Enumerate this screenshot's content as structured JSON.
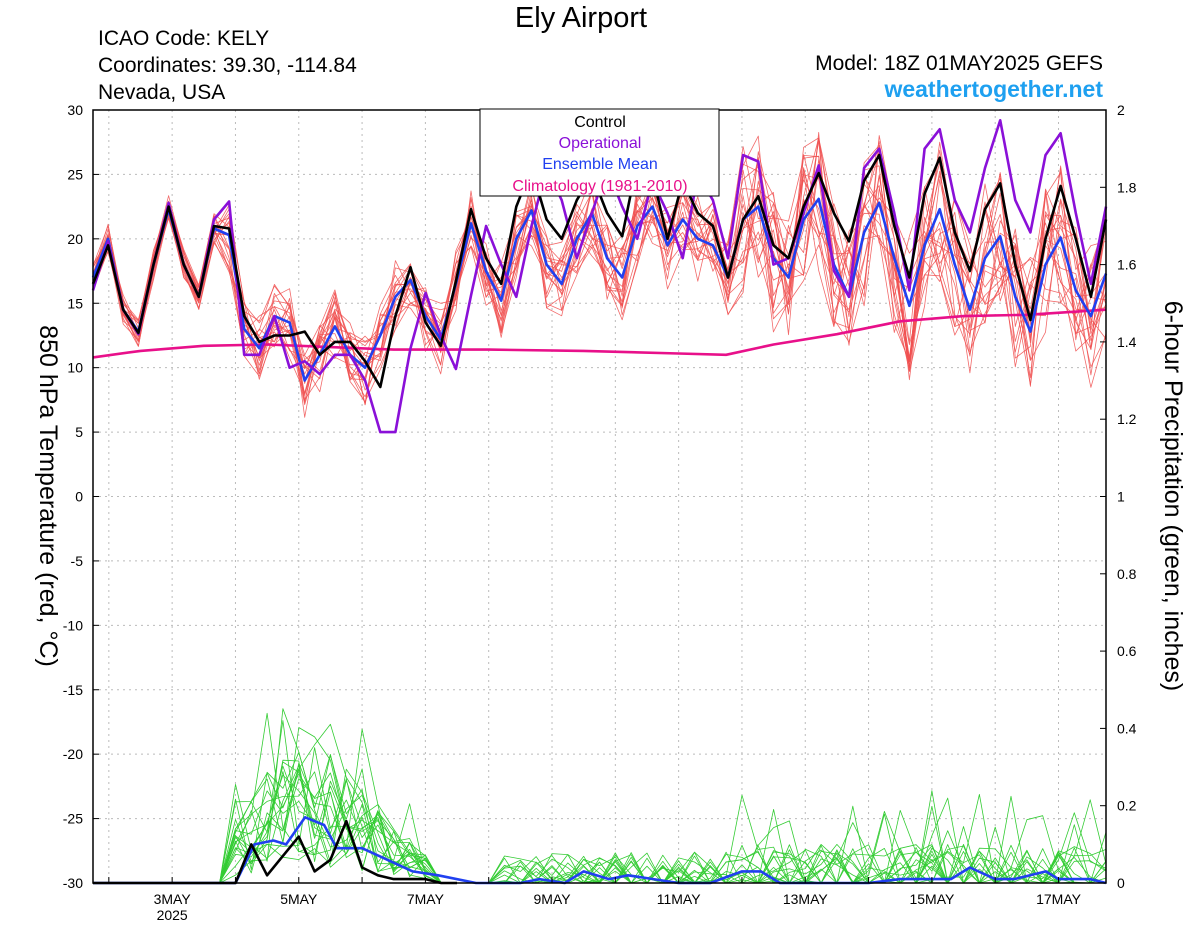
{
  "header": {
    "title": "Ely Airport",
    "icao": "ICAO Code: KELY",
    "coordinates": "Coordinates: 39.30, -114.84",
    "region": "Nevada, USA",
    "model": "Model: 18Z 01MAY2025 GEFS",
    "site": "weathertogether.net"
  },
  "chart_data": {
    "type": "line",
    "title": "Ely Airport",
    "ylabel_left": "850 hPa Temperature (red, °C)",
    "ylabel_right": "6-hour Precipitation (green, inches)",
    "ylim_left": [
      -30,
      30
    ],
    "ylim_right": [
      0,
      2
    ],
    "yticks_left": [
      "30",
      "25",
      "20",
      "15",
      "10",
      "5",
      "0",
      "-5",
      "-10",
      "-15",
      "-20",
      "-25",
      "-30"
    ],
    "yticks_right": [
      "2",
      "1.8",
      "1.6",
      "1.4",
      "1.2",
      "1",
      "0.8",
      "0.6",
      "0.4",
      "0.2",
      "0"
    ],
    "x_range_days": [
      1.75,
      17.75
    ],
    "xticks": [
      {
        "day": 3,
        "label": "3MAY",
        "sub": "2025"
      },
      {
        "day": 5,
        "label": "5MAY",
        "sub": ""
      },
      {
        "day": 7,
        "label": "7MAY",
        "sub": ""
      },
      {
        "day": 9,
        "label": "9MAY",
        "sub": ""
      },
      {
        "day": 11,
        "label": "11MAY",
        "sub": ""
      },
      {
        "day": 13,
        "label": "13MAY",
        "sub": ""
      },
      {
        "day": 15,
        "label": "15MAY",
        "sub": ""
      },
      {
        "day": 17,
        "label": "17MAY",
        "sub": ""
      }
    ],
    "grid": true,
    "legend_position": "top-center",
    "legend": [
      {
        "label": "Control",
        "color": "#000000"
      },
      {
        "label": "Operational",
        "color": "#8a10d8"
      },
      {
        "label": "Ensemble Mean",
        "color": "#2040f0"
      },
      {
        "label": "Climatology (1981-2010)",
        "color": "#e8108a"
      }
    ],
    "temperature_series": {
      "control": {
        "name": "Control",
        "color": "#000000",
        "values": [
          16.5,
          19.5,
          14.5,
          12.7,
          18,
          22.5,
          18,
          15.5,
          21,
          20.8,
          14,
          12,
          12.5,
          12.5,
          12.8,
          11,
          12,
          12,
          10.5,
          8.5,
          14,
          17.8,
          13.5,
          11.7,
          16.7,
          22.3,
          18.5,
          16.5,
          22.5,
          25.5,
          21.5,
          20,
          23,
          25,
          22,
          20.2,
          26,
          25,
          20,
          24.5,
          22,
          21,
          17,
          21.5,
          23.3,
          19.5,
          18.5,
          22.5,
          25.1,
          22,
          19.8,
          24.5,
          26.5,
          21,
          17,
          23.5,
          26.3,
          20.5,
          17.5,
          22.3,
          24.3,
          18,
          13.7,
          20,
          24.1,
          20,
          15.5,
          21.5
        ]
      },
      "operational": {
        "name": "Operational",
        "color": "#8a10d8",
        "values": [
          16,
          19.8,
          14.5,
          12.6,
          18,
          22.8,
          18,
          15.5,
          21.5,
          22.9,
          11,
          11,
          14,
          10,
          10.5,
          9.5,
          11,
          11,
          9,
          5,
          5,
          11.5,
          15.8,
          12.5,
          9.9,
          15.6,
          21,
          18,
          15.5,
          21,
          25.5,
          23,
          18.5,
          22,
          25.5,
          22.5,
          20,
          24.5,
          22,
          18.5,
          25,
          23,
          18.5,
          26.5,
          26,
          18,
          18.5,
          22,
          25.7,
          17.5,
          15.5,
          25.5,
          27,
          22,
          16,
          27,
          28.5,
          23,
          20.5,
          25.5,
          29.2,
          23,
          20.5,
          26.5,
          28.2,
          22,
          16.5,
          22.5
        ]
      },
      "mean": {
        "name": "Ensemble Mean",
        "color": "#2040f0",
        "values": [
          17,
          20,
          14.5,
          12.8,
          18,
          22.3,
          18,
          15.5,
          20.8,
          20.3,
          13,
          11.5,
          14,
          13.5,
          9,
          11,
          13.2,
          11,
          10,
          12.5,
          15.5,
          16.8,
          14,
          12.2,
          16.5,
          21.2,
          17.5,
          15.2,
          20,
          22.2,
          18,
          16.5,
          20,
          22,
          18.5,
          17,
          21,
          22.5,
          19.5,
          21.5,
          20,
          19.5,
          17,
          21.5,
          22.5,
          18.5,
          17,
          21.5,
          23.1,
          18,
          15.5,
          20.5,
          22.8,
          18.5,
          14.8,
          19.5,
          22.3,
          18,
          14.5,
          18.5,
          20.2,
          15.5,
          12.8,
          18,
          20.1,
          16,
          14,
          17.3
        ]
      },
      "climatology": {
        "name": "Climatology (1981-2010)",
        "color": "#e8108a",
        "points": [
          [
            1.75,
            10.8
          ],
          [
            2.5,
            11.3
          ],
          [
            3.5,
            11.7
          ],
          [
            4.5,
            11.8
          ],
          [
            5.5,
            11.6
          ],
          [
            6.5,
            11.4
          ],
          [
            8.0,
            11.4
          ],
          [
            9.5,
            11.3
          ],
          [
            11.0,
            11.1
          ],
          [
            11.75,
            11.0
          ],
          [
            12.5,
            11.8
          ],
          [
            13.5,
            12.6
          ],
          [
            14.5,
            13.6
          ],
          [
            15.5,
            14.0
          ],
          [
            16.5,
            14.1
          ],
          [
            17.75,
            14.5
          ]
        ]
      }
    },
    "precipitation_series": {
      "control": {
        "name": "Control",
        "color": "#000000",
        "values": [
          0,
          0,
          0,
          0,
          0,
          0,
          0,
          0,
          0,
          0,
          0.1,
          0.02,
          0.07,
          0.12,
          0.03,
          0.06,
          0.16,
          0.04,
          0.02,
          0.01,
          0.01,
          0.01,
          0,
          0
        ]
      },
      "mean": {
        "name": "Ensemble Mean",
        "color": "#2040f0",
        "points": [
          [
            1.75,
            0
          ],
          [
            4.0,
            0
          ],
          [
            4.3,
            0.1
          ],
          [
            4.6,
            0.11
          ],
          [
            4.8,
            0.1
          ],
          [
            5.1,
            0.17
          ],
          [
            5.4,
            0.15
          ],
          [
            5.6,
            0.09
          ],
          [
            6.0,
            0.09
          ],
          [
            6.4,
            0.06
          ],
          [
            6.8,
            0.03
          ],
          [
            7.2,
            0.02
          ],
          [
            7.8,
            0
          ],
          [
            8.5,
            0
          ],
          [
            8.8,
            0.01
          ],
          [
            9.2,
            0
          ],
          [
            9.5,
            0.03
          ],
          [
            9.9,
            0.01
          ],
          [
            10.2,
            0.02
          ],
          [
            10.6,
            0.01
          ],
          [
            11.0,
            0
          ],
          [
            11.5,
            0
          ],
          [
            12.0,
            0.03
          ],
          [
            12.3,
            0.03
          ],
          [
            12.6,
            0
          ],
          [
            13.5,
            0
          ],
          [
            14.0,
            0
          ],
          [
            14.5,
            0.01
          ],
          [
            15.0,
            0.01
          ],
          [
            15.3,
            0.01
          ],
          [
            15.6,
            0.04
          ],
          [
            16.0,
            0.01
          ],
          [
            16.3,
            0.01
          ],
          [
            16.8,
            0.03
          ],
          [
            17.0,
            0.01
          ],
          [
            17.5,
            0.01
          ],
          [
            17.75,
            0
          ]
        ]
      }
    }
  }
}
